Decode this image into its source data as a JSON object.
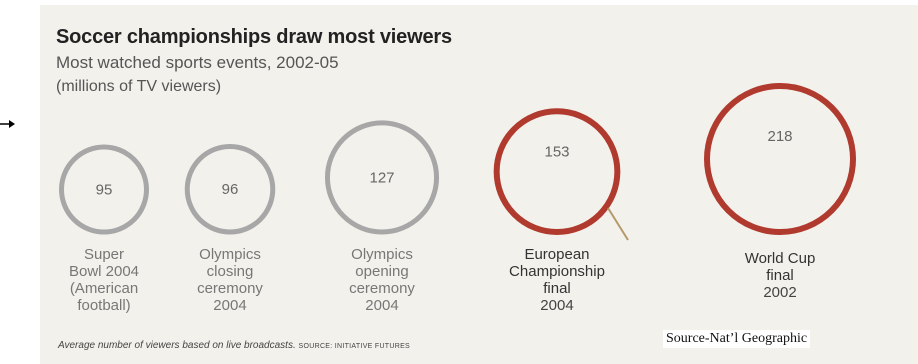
{
  "chart_data": {
    "type": "bubble",
    "title": "Soccer championships draw most viewers",
    "subtitle": "Most watched sports events, 2002-05",
    "unit_label": "(millions of TV viewers)",
    "categories": [
      [
        "Super",
        "Bowl 2004",
        "(American",
        "football)"
      ],
      [
        "Olympics",
        "closing",
        "ceremony",
        "2004"
      ],
      [
        "Olympics",
        "opening",
        "ceremony",
        "2004"
      ],
      [
        "European",
        "Championship",
        "final",
        "2004"
      ],
      [
        "World Cup",
        "final",
        "2002"
      ]
    ],
    "values": [
      95,
      96,
      127,
      153,
      218
    ],
    "colors": [
      "#a7a7a7",
      "#a7a7a7",
      "#a7a7a7",
      "#b03a2e",
      "#b03a2e"
    ],
    "footnote": "Average number of viewers based on live broadcasts.",
    "source_label": "SOURCE: INITIATIVE FUTURES"
  },
  "credit": "Source-Nat’l Geographic"
}
